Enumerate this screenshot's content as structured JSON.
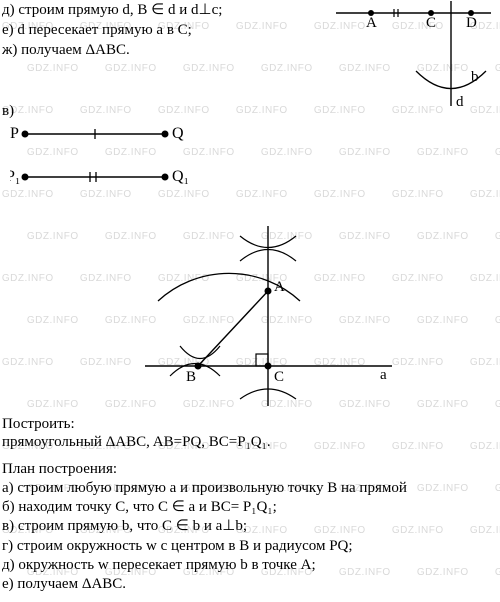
{
  "intro": {
    "d": "д) строим прямую d, B ∈ d и d⊥c;",
    "e": "е) d пересекает прямую a в C;",
    "zh": "ж) получаем ΔABC."
  },
  "section_v": "в)",
  "figTopRight": {
    "A": "A",
    "C": "C",
    "D": "D",
    "b": "b",
    "d": "d",
    "stroke": "#000000"
  },
  "figPQ": {
    "P": "P",
    "Q": "Q",
    "P1": "P₁",
    "Q1": "Q₁",
    "stroke": "#000000"
  },
  "figCenter": {
    "A": "A",
    "B": "B",
    "C": "C",
    "a": "a",
    "stroke": "#000000"
  },
  "build": {
    "header": "Построить:",
    "body": "прямоугольный ΔABC, AB=PQ,  BC=P₁Q₁."
  },
  "plan": {
    "header": "План построения:",
    "a": "а) строим любую прямую a и произвольную точку B на прямой",
    "b": "б) находим точку C, что C ∈ a и BC= P₁Q₁;",
    "v": "в) строим прямую b, что C ∈ b и a⊥b;",
    "g": "г) строим окружность w с центром в B и радиусом PQ;",
    "d": "д) окружность w пересекает прямую b в точке A;",
    "e": "е) получаем ΔABC."
  },
  "watermark": {
    "text": "GDZ.INFO",
    "color": "#d9d9d9",
    "fontsize": 10
  }
}
